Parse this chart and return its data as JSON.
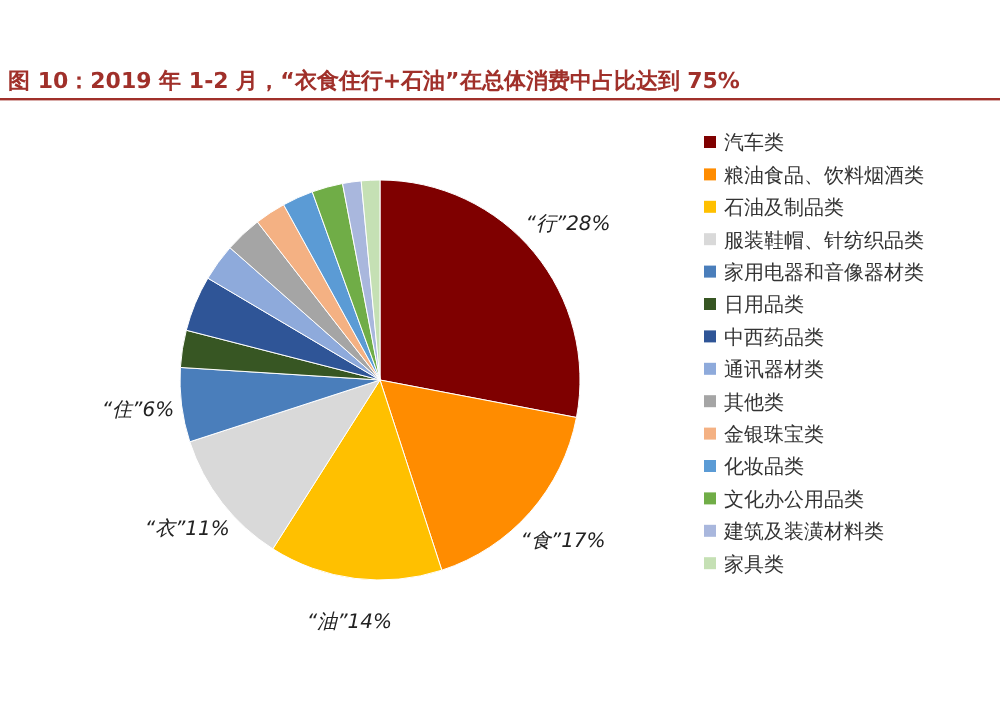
{
  "chart_data": {
    "type": "pie",
    "title": "图 10：2019 年 1-2 月，“衣食住行+石油”在总体消费中占比达到 75%",
    "categories": [
      "汽车类",
      "粮油食品、饮料烟酒类",
      "石油及制品类",
      "服装鞋帽、针纺织品类",
      "家用电器和音像器材类",
      "日用品类",
      "中西药品类",
      "通讯器材类",
      "其他类",
      "金银珠宝类",
      "化妆品类",
      "文化办公用品类",
      "建筑及装潢材料类",
      "家具类"
    ],
    "values": [
      28,
      17,
      14,
      11,
      6,
      3,
      4.5,
      3,
      3,
      2.5,
      2.5,
      2.5,
      1.5,
      1.5
    ],
    "colors": [
      "#7f0000",
      "#ff8c00",
      "#ffc000",
      "#d9d9d9",
      "#4a7ebb",
      "#375623",
      "#2f5597",
      "#8eaadb",
      "#a5a5a5",
      "#f4b183",
      "#5b9bd5",
      "#70ad47",
      "#a9b7dd",
      "#c5e0b4"
    ],
    "value_labels": [
      "“行”28%",
      "“食”17%",
      "“油”14%",
      "“衣”11%",
      "“住”6%",
      null,
      null,
      null,
      null,
      null,
      null,
      null,
      null,
      null
    ],
    "legend": "right"
  }
}
